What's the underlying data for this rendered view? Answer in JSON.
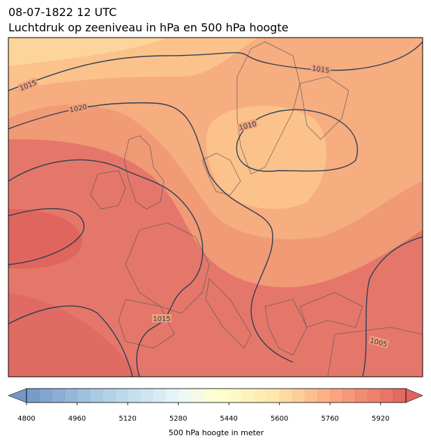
{
  "header": {
    "title": [
      "08-07-1822 12 UTC",
      "Luchtdruk op zeeniveau in hPa en 500 hPa hoogte"
    ]
  },
  "map": {
    "contour_labels": [
      "1015",
      "1020",
      "1010",
      "1015",
      "1015",
      "1005"
    ]
  },
  "colorbar": {
    "label": "500 hPa hoogte in meter",
    "range": [
      4800,
      6000
    ],
    "level_step": 40,
    "ticks": [
      4800,
      4960,
      5120,
      5280,
      5440,
      5600,
      5760,
      5920
    ]
  }
}
